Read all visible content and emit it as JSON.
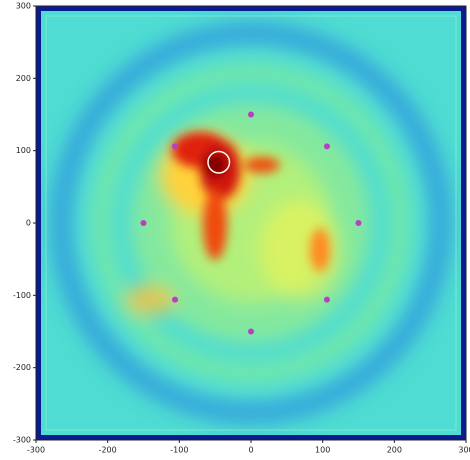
{
  "chart_data": {
    "type": "scatter",
    "xlim": [
      -300,
      300
    ],
    "ylim": [
      -300,
      300
    ],
    "xticks": [
      -300,
      -200,
      -100,
      0,
      100,
      200,
      300
    ],
    "yticks": [
      -300,
      -200,
      -100,
      0,
      100,
      200,
      300
    ],
    "series": [
      {
        "color": "#b83fc4",
        "x": [
          0,
          106,
          150,
          106,
          0,
          -106,
          -150,
          -106
        ],
        "y": [
          150,
          106,
          0,
          -106,
          -150,
          -106,
          0,
          106
        ]
      }
    ],
    "source": {
      "x": -45,
      "y": 84,
      "radius": 15,
      "color": "#ffffff"
    }
  }
}
